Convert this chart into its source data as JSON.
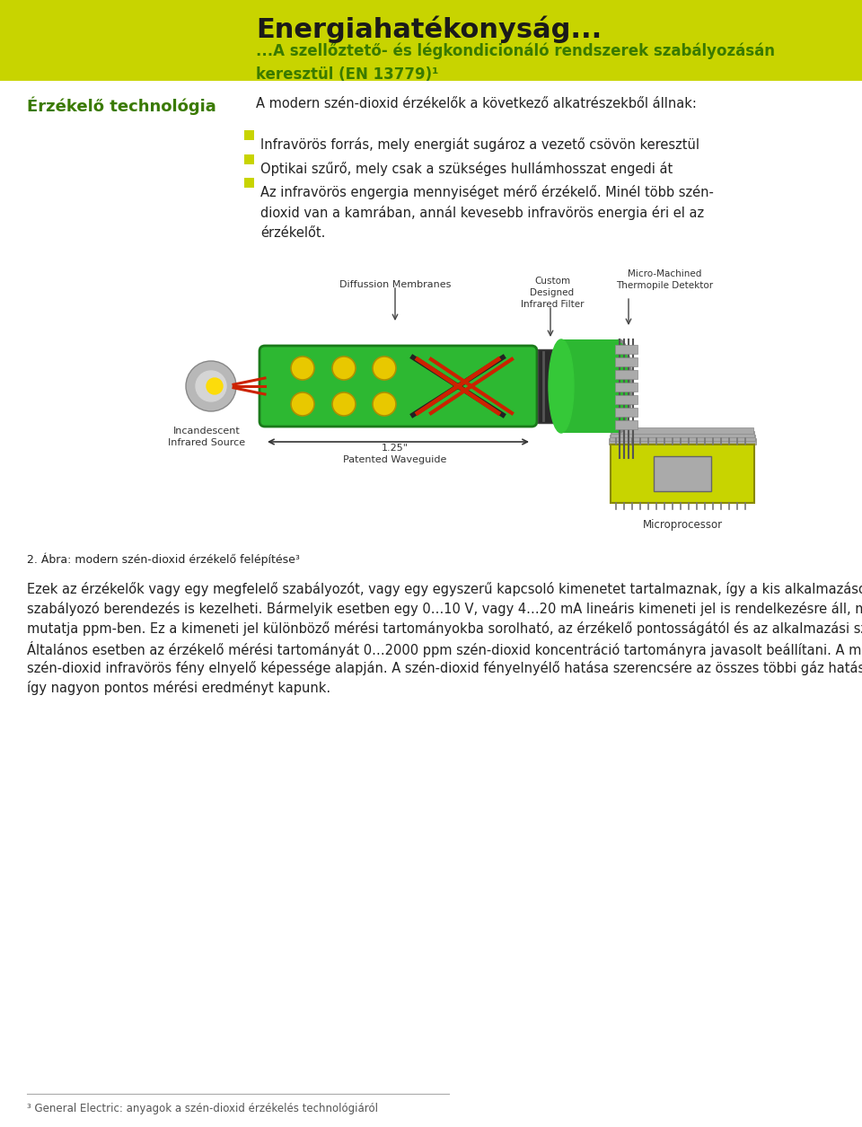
{
  "bg_color": "#ffffff",
  "header_bg": "#c8d400",
  "header_title": "Energiahatékonyság...",
  "header_subtitle": "...A szellőztető- és légkondicionáló rendszerek szabályozásán\nkeresztül (EN 13779)¹",
  "header_title_color": "#1a1a1a",
  "header_subtitle_color": "#3a7a00",
  "section_title": "Érzékelő technológia",
  "section_title_color": "#3a7a00",
  "section_intro": "A modern szén-dioxid érzékelők a következő alkatrészekből állnak:",
  "bullet_color": "#c8d400",
  "bullets": [
    "Infravörös forrás, mely energiát sugároz a vezető csövön keresztül",
    "Optikai szűrő, mely csak a szükséges hullámhosszat engedi át",
    "Az infravörös engergia mennyiséget mérő érzékelő. Minél több szén-\ndioxid van a kamrában, annál kevesebb infravörös energia éri el az\nérzékelőt."
  ],
  "diagram_labels": {
    "diffusion": "Diffussion Membranes",
    "custom": "Custom\nDesigned\nInfrared Filter",
    "micro": "Micro-Machined\nThermopile Detektor",
    "incandescent": "Incandescent\nInfrared Source",
    "waveguide": "1.25\"\nPatented Waveguide",
    "microprocessor": "Microprocessor"
  },
  "figure_caption": "2. Ábra: modern szén-dioxid érzékelő felépítése³",
  "body_text_lines": [
    "Ezek az érzékelők vagy egy megfelelő szabályozót, vagy egy egyszerű kapcsoló kimenetet tartalmaznak, így a kis alkalmazásokat közvetlenül az érzékelő-",
    "szabályozó berendezés is kezelheti. Bármelyik esetben egy 0…10 V, vagy 4…20 mA lineáris kimeneti jel is rendelkezésre áll, mely szén-dioxid koncentrációt",
    "mutatja ppm-ben. Ez a kimeneti jel különböző mérési tartományokba sorolható, az érzékelő pontosságától és az alkalmazási szükségletektől függően.",
    "Általános esetben az érzékelő mérési tartományát 0…2000 ppm szén-dioxid koncentráció tartományra javasolt beállítani. A mérés optikai elven működik, a",
    "szén-dioxid infravörös fény elnyelő képessége alapján. A szén-dioxid fényelnyélő hatása szerencsére az összes többi gáz hatástól elkülönítve szűrhető,",
    "így nagyon pontos mérési eredményt kapunk."
  ],
  "footnote": "³ General Electric: anyagok a szén-dioxid érzékelés technológiáról",
  "text_color": "#222222",
  "green_dark": "#1a7a1a",
  "green_tube": "#2db832",
  "green_det": "#2db832",
  "yellow_circle": "#e8c800",
  "chip_yellow": "#c8d400"
}
